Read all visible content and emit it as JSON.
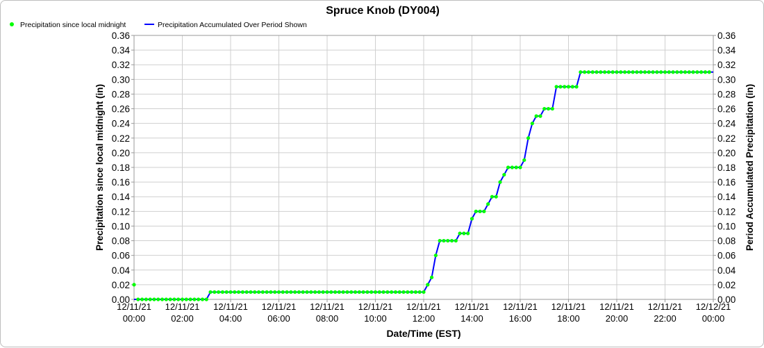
{
  "chart_data": {
    "type": "line",
    "title": "Spruce Knob (DY004)",
    "xlabel": "Date/Time (EST)",
    "ylabel_left": "Precipitation since local midnight (in)",
    "ylabel_right": "Period Accumulated Precipitation (in)",
    "ylim": [
      0,
      0.36
    ],
    "yticks": [
      0.0,
      0.02,
      0.04,
      0.06,
      0.08,
      0.1,
      0.12,
      0.14,
      0.16,
      0.18,
      0.2,
      0.22,
      0.24,
      0.26,
      0.28,
      0.3,
      0.32,
      0.34,
      0.36
    ],
    "xlim": [
      "12/11/21 00:00",
      "12/12/21 00:00"
    ],
    "xticks": [
      {
        "date": "12/11/21",
        "time": "00:00"
      },
      {
        "date": "12/11/21",
        "time": "02:00"
      },
      {
        "date": "12/11/21",
        "time": "04:00"
      },
      {
        "date": "12/11/21",
        "time": "06:00"
      },
      {
        "date": "12/11/21",
        "time": "08:00"
      },
      {
        "date": "12/11/21",
        "time": "10:00"
      },
      {
        "date": "12/11/21",
        "time": "12:00"
      },
      {
        "date": "12/11/21",
        "time": "14:00"
      },
      {
        "date": "12/11/21",
        "time": "16:00"
      },
      {
        "date": "12/11/21",
        "time": "18:00"
      },
      {
        "date": "12/11/21",
        "time": "20:00"
      },
      {
        "date": "12/11/21",
        "time": "22:00"
      },
      {
        "date": "12/12/21",
        "time": "00:00"
      }
    ],
    "grid": true,
    "legend_position": "top-left",
    "series": [
      {
        "name": "Precipitation since local midnight",
        "kind": "scatter",
        "color": "#00ff00",
        "points": [
          [
            "00:00",
            0.02
          ],
          [
            "00:10",
            0.0
          ],
          [
            "00:20",
            0.0
          ],
          [
            "00:30",
            0.0
          ],
          [
            "00:40",
            0.0
          ],
          [
            "00:50",
            0.0
          ],
          [
            "01:00",
            0.0
          ],
          [
            "01:10",
            0.0
          ],
          [
            "01:20",
            0.0
          ],
          [
            "01:30",
            0.0
          ],
          [
            "01:40",
            0.0
          ],
          [
            "01:50",
            0.0
          ],
          [
            "02:00",
            0.0
          ],
          [
            "02:10",
            0.0
          ],
          [
            "02:20",
            0.0
          ],
          [
            "02:30",
            0.0
          ],
          [
            "02:40",
            0.0
          ],
          [
            "02:50",
            0.0
          ],
          [
            "03:00",
            0.0
          ],
          [
            "03:10",
            0.01
          ],
          [
            "03:20",
            0.01
          ],
          [
            "03:30",
            0.01
          ],
          [
            "03:40",
            0.01
          ],
          [
            "03:50",
            0.01
          ],
          [
            "04:00",
            0.01
          ],
          [
            "04:10",
            0.01
          ],
          [
            "04:20",
            0.01
          ],
          [
            "04:30",
            0.01
          ],
          [
            "04:40",
            0.01
          ],
          [
            "04:50",
            0.01
          ],
          [
            "05:00",
            0.01
          ],
          [
            "05:10",
            0.01
          ],
          [
            "05:20",
            0.01
          ],
          [
            "05:30",
            0.01
          ],
          [
            "05:40",
            0.01
          ],
          [
            "05:50",
            0.01
          ],
          [
            "06:00",
            0.01
          ],
          [
            "06:10",
            0.01
          ],
          [
            "06:20",
            0.01
          ],
          [
            "06:30",
            0.01
          ],
          [
            "06:40",
            0.01
          ],
          [
            "06:50",
            0.01
          ],
          [
            "07:00",
            0.01
          ],
          [
            "07:10",
            0.01
          ],
          [
            "07:20",
            0.01
          ],
          [
            "07:30",
            0.01
          ],
          [
            "07:40",
            0.01
          ],
          [
            "07:50",
            0.01
          ],
          [
            "08:00",
            0.01
          ],
          [
            "08:10",
            0.01
          ],
          [
            "08:20",
            0.01
          ],
          [
            "08:30",
            0.01
          ],
          [
            "08:40",
            0.01
          ],
          [
            "08:50",
            0.01
          ],
          [
            "09:00",
            0.01
          ],
          [
            "09:10",
            0.01
          ],
          [
            "09:20",
            0.01
          ],
          [
            "09:30",
            0.01
          ],
          [
            "09:40",
            0.01
          ],
          [
            "09:50",
            0.01
          ],
          [
            "10:00",
            0.01
          ],
          [
            "10:10",
            0.01
          ],
          [
            "10:20",
            0.01
          ],
          [
            "10:30",
            0.01
          ],
          [
            "10:40",
            0.01
          ],
          [
            "10:50",
            0.01
          ],
          [
            "11:00",
            0.01
          ],
          [
            "11:10",
            0.01
          ],
          [
            "11:20",
            0.01
          ],
          [
            "11:30",
            0.01
          ],
          [
            "11:40",
            0.01
          ],
          [
            "11:50",
            0.01
          ],
          [
            "12:00",
            0.01
          ],
          [
            "12:10",
            0.02
          ],
          [
            "12:20",
            0.03
          ],
          [
            "12:30",
            0.06
          ],
          [
            "12:40",
            0.08
          ],
          [
            "12:50",
            0.08
          ],
          [
            "13:00",
            0.08
          ],
          [
            "13:10",
            0.08
          ],
          [
            "13:20",
            0.08
          ],
          [
            "13:30",
            0.09
          ],
          [
            "13:40",
            0.09
          ],
          [
            "13:50",
            0.09
          ],
          [
            "14:00",
            0.11
          ],
          [
            "14:10",
            0.12
          ],
          [
            "14:20",
            0.12
          ],
          [
            "14:30",
            0.12
          ],
          [
            "14:40",
            0.13
          ],
          [
            "14:50",
            0.14
          ],
          [
            "15:00",
            0.14
          ],
          [
            "15:10",
            0.16
          ],
          [
            "15:20",
            0.17
          ],
          [
            "15:30",
            0.18
          ],
          [
            "15:40",
            0.18
          ],
          [
            "15:50",
            0.18
          ],
          [
            "16:00",
            0.18
          ],
          [
            "16:10",
            0.19
          ],
          [
            "16:20",
            0.22
          ],
          [
            "16:30",
            0.24
          ],
          [
            "16:40",
            0.25
          ],
          [
            "16:50",
            0.25
          ],
          [
            "17:00",
            0.26
          ],
          [
            "17:10",
            0.26
          ],
          [
            "17:20",
            0.26
          ],
          [
            "17:30",
            0.29
          ],
          [
            "17:40",
            0.29
          ],
          [
            "17:50",
            0.29
          ],
          [
            "18:00",
            0.29
          ],
          [
            "18:10",
            0.29
          ],
          [
            "18:20",
            0.29
          ],
          [
            "18:30",
            0.31
          ],
          [
            "18:40",
            0.31
          ],
          [
            "18:50",
            0.31
          ],
          [
            "19:00",
            0.31
          ],
          [
            "19:10",
            0.31
          ],
          [
            "19:20",
            0.31
          ],
          [
            "19:30",
            0.31
          ],
          [
            "19:40",
            0.31
          ],
          [
            "19:50",
            0.31
          ],
          [
            "20:00",
            0.31
          ],
          [
            "20:10",
            0.31
          ],
          [
            "20:20",
            0.31
          ],
          [
            "20:30",
            0.31
          ],
          [
            "20:40",
            0.31
          ],
          [
            "20:50",
            0.31
          ],
          [
            "21:00",
            0.31
          ],
          [
            "21:10",
            0.31
          ],
          [
            "21:20",
            0.31
          ],
          [
            "21:30",
            0.31
          ],
          [
            "21:40",
            0.31
          ],
          [
            "21:50",
            0.31
          ],
          [
            "22:00",
            0.31
          ],
          [
            "22:10",
            0.31
          ],
          [
            "22:20",
            0.31
          ],
          [
            "22:30",
            0.31
          ],
          [
            "22:40",
            0.31
          ],
          [
            "22:50",
            0.31
          ],
          [
            "23:00",
            0.31
          ],
          [
            "23:10",
            0.31
          ],
          [
            "23:20",
            0.31
          ],
          [
            "23:30",
            0.31
          ],
          [
            "23:40",
            0.31
          ],
          [
            "23:50",
            0.31
          ]
        ]
      },
      {
        "name": "Precipitation Accumulated Over Period Shown",
        "kind": "line",
        "color": "#0000ff",
        "points": [
          [
            "00:00",
            0.0
          ],
          [
            "03:00",
            0.0
          ],
          [
            "03:10",
            0.01
          ],
          [
            "12:00",
            0.01
          ],
          [
            "12:10",
            0.02
          ],
          [
            "12:20",
            0.03
          ],
          [
            "12:30",
            0.06
          ],
          [
            "12:40",
            0.08
          ],
          [
            "13:20",
            0.08
          ],
          [
            "13:30",
            0.09
          ],
          [
            "13:50",
            0.09
          ],
          [
            "14:00",
            0.11
          ],
          [
            "14:10",
            0.12
          ],
          [
            "14:30",
            0.12
          ],
          [
            "14:40",
            0.13
          ],
          [
            "14:50",
            0.14
          ],
          [
            "15:00",
            0.14
          ],
          [
            "15:10",
            0.16
          ],
          [
            "15:20",
            0.17
          ],
          [
            "15:30",
            0.18
          ],
          [
            "16:00",
            0.18
          ],
          [
            "16:10",
            0.19
          ],
          [
            "16:20",
            0.22
          ],
          [
            "16:30",
            0.24
          ],
          [
            "16:40",
            0.25
          ],
          [
            "16:50",
            0.25
          ],
          [
            "17:00",
            0.26
          ],
          [
            "17:20",
            0.26
          ],
          [
            "17:30",
            0.29
          ],
          [
            "18:20",
            0.29
          ],
          [
            "18:30",
            0.31
          ],
          [
            "24:00",
            0.31
          ]
        ]
      }
    ]
  }
}
